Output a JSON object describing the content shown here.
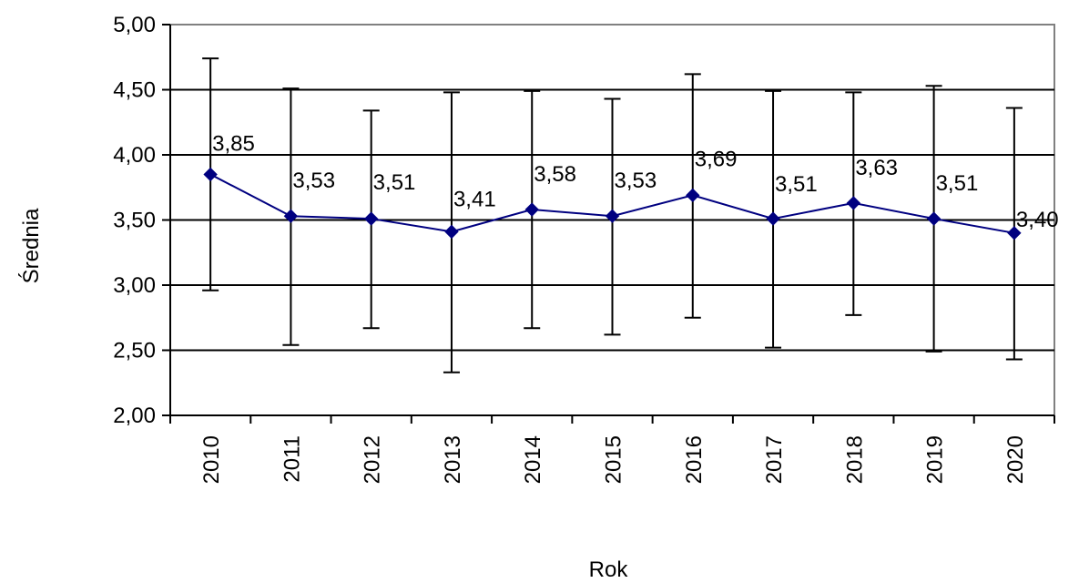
{
  "chart_data": {
    "type": "line",
    "title": "",
    "xlabel": "Rok",
    "ylabel": "Średnia",
    "categories": [
      "2010",
      "2011",
      "2012",
      "2013",
      "2014",
      "2015",
      "2016",
      "2017",
      "2018",
      "2019",
      "2020"
    ],
    "series": [
      {
        "values": [
          3.85,
          3.53,
          3.51,
          3.41,
          3.58,
          3.53,
          3.69,
          3.51,
          3.63,
          3.51,
          3.4
        ],
        "labels": [
          "3,85",
          "3,53",
          "3,51",
          "3,41",
          "3,58",
          "3,53",
          "3,69",
          "3,51",
          "3,63",
          "3,51",
          "3,40"
        ],
        "error_low": [
          2.96,
          2.54,
          2.67,
          2.33,
          2.67,
          2.62,
          2.75,
          2.52,
          2.77,
          2.49,
          2.43
        ],
        "error_high": [
          4.74,
          4.51,
          4.34,
          4.48,
          4.49,
          4.43,
          4.62,
          4.49,
          4.48,
          4.53,
          4.36
        ],
        "color": "#000080"
      }
    ],
    "ylim": [
      2.0,
      5.0
    ],
    "yticks": [
      2.0,
      2.5,
      3.0,
      3.5,
      4.0,
      4.5,
      5.0
    ],
    "ytick_labels": [
      "2,00",
      "2,50",
      "3,00",
      "3,50",
      "4,00",
      "4,50",
      "5,00"
    ],
    "grid": true,
    "legend": "none"
  }
}
